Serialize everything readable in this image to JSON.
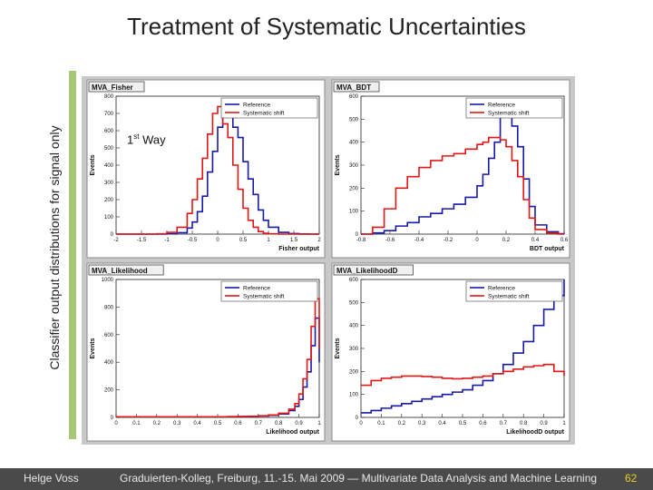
{
  "page": {
    "title": "Treatment of Systematic Uncertainties",
    "side_label": "Classifier output distributions for signal only",
    "annotation_main": "1",
    "annotation_sup": "st",
    "annotation_rest": " Way",
    "footer_author": "Helge Voss",
    "footer_conference": "Graduierten-Kolleg, Freiburg,  11.-15. Mai 2009  — Multivariate Data Analysis and Machine Learning",
    "footer_page": "62"
  },
  "colors": {
    "reference": "#1a1aa8",
    "shift": "#e01818",
    "panel_bg": "#ffffff",
    "canvas_bg": "#c8c8c8",
    "accent": "#a8c878"
  },
  "chart_data": [
    {
      "type": "line",
      "name": "MVA_Fisher",
      "xlabel": "Fisher output",
      "ylabel": "Events",
      "xlim": [
        -2,
        2
      ],
      "ylim": [
        0,
        800
      ],
      "xticks": [
        -2,
        -1.5,
        -1,
        -0.5,
        0,
        0.5,
        1,
        1.5,
        2
      ],
      "xtick_labels": [
        "-2",
        "-1.5",
        "-1",
        "-0.5",
        "0",
        "0.5",
        "1",
        "1.5",
        "2"
      ],
      "yticks": [
        0,
        100,
        200,
        300,
        400,
        500,
        600,
        700,
        800
      ],
      "legend_position": "top-right",
      "x": [
        -2,
        -1.8,
        -1.6,
        -1.4,
        -1.2,
        -1.0,
        -0.8,
        -0.6,
        -0.5,
        -0.4,
        -0.3,
        -0.2,
        -0.1,
        0,
        0.1,
        0.2,
        0.3,
        0.4,
        0.5,
        0.6,
        0.7,
        0.8,
        0.9,
        1.0,
        1.2,
        1.4,
        1.6,
        1.8,
        2.0
      ],
      "series": [
        {
          "name": "Reference",
          "values": [
            0,
            0,
            0,
            0,
            0,
            2,
            8,
            35,
            70,
            130,
            220,
            360,
            480,
            620,
            700,
            690,
            620,
            560,
            420,
            320,
            230,
            140,
            80,
            40,
            10,
            3,
            1,
            0,
            0
          ]
        },
        {
          "name": "Systematic shift",
          "values": [
            0,
            0,
            0,
            0,
            2,
            10,
            40,
            120,
            200,
            320,
            440,
            580,
            700,
            740,
            640,
            560,
            400,
            260,
            150,
            80,
            40,
            15,
            5,
            2,
            0,
            0,
            0,
            0,
            0
          ]
        }
      ]
    },
    {
      "type": "line",
      "name": "MVA_BDT",
      "xlabel": "BDT output",
      "ylabel": "Events",
      "xlim": [
        -0.8,
        0.6
      ],
      "ylim": [
        0,
        600
      ],
      "xticks": [
        -0.8,
        -0.6,
        -0.4,
        -0.2,
        0,
        0.2,
        0.4,
        0.6
      ],
      "xtick_labels": [
        "-0.8",
        "-0.6",
        "-0.4",
        "-0.2",
        "0",
        "0.2",
        "0.4",
        "0.6"
      ],
      "yticks": [
        0,
        100,
        200,
        300,
        400,
        500,
        600
      ],
      "legend_position": "top-right",
      "x": [
        -0.8,
        -0.72,
        -0.64,
        -0.56,
        -0.48,
        -0.4,
        -0.32,
        -0.24,
        -0.16,
        -0.08,
        0,
        0.04,
        0.08,
        0.12,
        0.16,
        0.2,
        0.24,
        0.28,
        0.32,
        0.36,
        0.4,
        0.48,
        0.56,
        0.6
      ],
      "series": [
        {
          "name": "Reference",
          "values": [
            0,
            5,
            15,
            35,
            50,
            75,
            90,
            110,
            130,
            160,
            210,
            260,
            330,
            400,
            520,
            550,
            470,
            380,
            240,
            120,
            40,
            10,
            2,
            0
          ]
        },
        {
          "name": "Systematic shift",
          "values": [
            0,
            30,
            110,
            200,
            250,
            290,
            320,
            340,
            350,
            370,
            390,
            400,
            420,
            420,
            410,
            380,
            320,
            250,
            150,
            70,
            20,
            5,
            0,
            0
          ]
        }
      ]
    },
    {
      "type": "line",
      "name": "MVA_Likelihood",
      "xlabel": "Likelihood output",
      "ylabel": "Events",
      "xlim": [
        0,
        1
      ],
      "ylim": [
        0,
        1000
      ],
      "xticks": [
        0,
        0.1,
        0.2,
        0.3,
        0.4,
        0.5,
        0.6,
        0.7,
        0.8,
        0.9,
        1
      ],
      "xtick_labels": [
        "0",
        "0.1",
        "0.2",
        "0.3",
        "0.4",
        "0.5",
        "0.6",
        "0.7",
        "0.8",
        "0.9",
        "1"
      ],
      "yticks": [
        0,
        200,
        400,
        600,
        800,
        1000
      ],
      "legend_position": "top-right",
      "x": [
        0,
        0.05,
        0.1,
        0.15,
        0.2,
        0.25,
        0.3,
        0.35,
        0.4,
        0.45,
        0.5,
        0.55,
        0.6,
        0.65,
        0.7,
        0.75,
        0.8,
        0.85,
        0.88,
        0.9,
        0.92,
        0.94,
        0.96,
        0.98,
        1.0
      ],
      "series": [
        {
          "name": "Reference",
          "values": [
            5,
            5,
            5,
            5,
            5,
            5,
            5,
            5,
            5,
            5,
            5,
            5,
            6,
            8,
            10,
            15,
            25,
            50,
            80,
            130,
            220,
            330,
            520,
            720,
            400
          ]
        },
        {
          "name": "Systematic shift",
          "values": [
            5,
            5,
            5,
            5,
            5,
            5,
            5,
            5,
            5,
            5,
            5,
            6,
            7,
            9,
            12,
            18,
            30,
            60,
            100,
            170,
            280,
            420,
            660,
            860,
            500
          ]
        }
      ]
    },
    {
      "type": "line",
      "name": "MVA_LikelihoodD",
      "xlabel": "LikelihoodD output",
      "ylabel": "Events",
      "xlim": [
        0,
        1
      ],
      "ylim": [
        0,
        600
      ],
      "xticks": [
        0,
        0.1,
        0.2,
        0.3,
        0.4,
        0.5,
        0.6,
        0.7,
        0.8,
        0.9,
        1
      ],
      "xtick_labels": [
        "0",
        "0.1",
        "0.2",
        "0.3",
        "0.4",
        "0.5",
        "0.6",
        "0.7",
        "0.8",
        "0.9",
        "1"
      ],
      "yticks": [
        0,
        100,
        200,
        300,
        400,
        500,
        600
      ],
      "legend_position": "top-right",
      "x": [
        0,
        0.05,
        0.1,
        0.15,
        0.2,
        0.25,
        0.3,
        0.35,
        0.4,
        0.45,
        0.5,
        0.55,
        0.6,
        0.65,
        0.7,
        0.75,
        0.8,
        0.85,
        0.9,
        0.95,
        1.0
      ],
      "series": [
        {
          "name": "Reference",
          "values": [
            20,
            30,
            40,
            50,
            60,
            70,
            80,
            90,
            100,
            110,
            120,
            140,
            160,
            190,
            230,
            280,
            330,
            400,
            470,
            530,
            600
          ]
        },
        {
          "name": "Systematic shift",
          "values": [
            140,
            160,
            170,
            175,
            180,
            180,
            178,
            175,
            170,
            168,
            170,
            175,
            180,
            190,
            200,
            210,
            220,
            225,
            230,
            200,
            180
          ]
        }
      ]
    }
  ]
}
